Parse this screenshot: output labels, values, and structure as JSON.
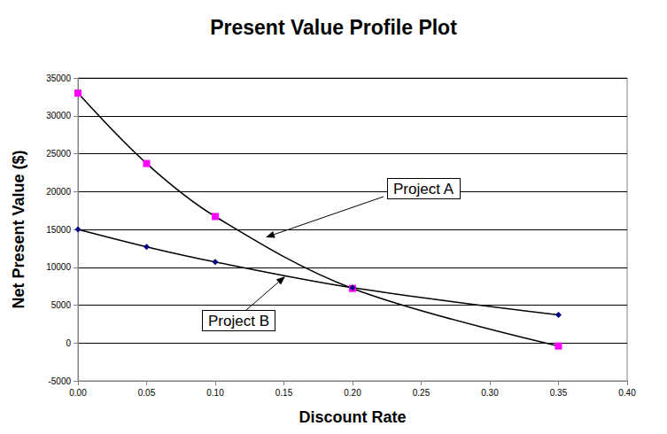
{
  "chart_data": {
    "type": "line",
    "title": "Present Value Profile Plot",
    "x_label": "Discount Rate",
    "y_label": "Net Present Value ($)",
    "x": [
      0.0,
      0.05,
      0.1,
      0.2,
      0.35
    ],
    "series": [
      {
        "name": "Project A",
        "color": "#ff00ff",
        "marker": "square",
        "values": [
          33000,
          23700,
          16700,
          7200,
          -400
        ]
      },
      {
        "name": "Project B",
        "color": "#000080",
        "marker": "diamond",
        "values": [
          15000,
          12700,
          10700,
          7300,
          3700
        ]
      }
    ],
    "xlim": [
      0,
      0.4
    ],
    "xticks": [
      {
        "value": 0,
        "label": "0.00"
      },
      {
        "value": 0.05,
        "label": "0.05"
      },
      {
        "value": 0.1,
        "label": "0.10"
      },
      {
        "value": 0.15,
        "label": "0.15"
      },
      {
        "value": 0.2,
        "label": "0.20"
      },
      {
        "value": 0.25,
        "label": "0.25"
      },
      {
        "value": 0.3,
        "label": "0.30"
      },
      {
        "value": 0.35,
        "label": "0.35"
      },
      {
        "value": 0.4,
        "label": "0.40"
      }
    ],
    "ylim": [
      -5000,
      35000
    ],
    "yticks": [
      -5000,
      0,
      5000,
      10000,
      15000,
      20000,
      25000,
      30000,
      35000
    ],
    "grid": true
  }
}
